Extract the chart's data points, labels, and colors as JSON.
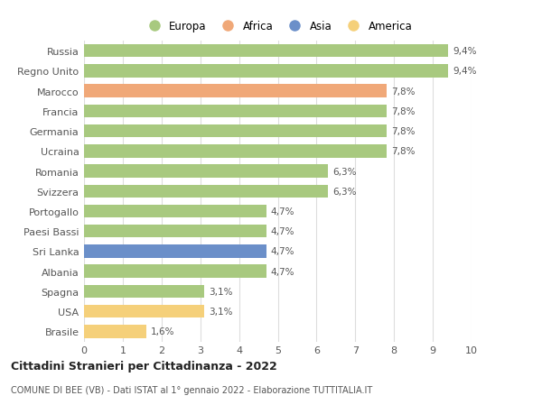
{
  "countries": [
    "Russia",
    "Regno Unito",
    "Marocco",
    "Francia",
    "Germania",
    "Ucraina",
    "Romania",
    "Svizzera",
    "Portogallo",
    "Paesi Bassi",
    "Sri Lanka",
    "Albania",
    "Spagna",
    "USA",
    "Brasile"
  ],
  "values": [
    9.4,
    9.4,
    7.8,
    7.8,
    7.8,
    7.8,
    6.3,
    6.3,
    4.7,
    4.7,
    4.7,
    4.7,
    3.1,
    3.1,
    1.6
  ],
  "labels": [
    "9,4%",
    "9,4%",
    "7,8%",
    "7,8%",
    "7,8%",
    "7,8%",
    "6,3%",
    "6,3%",
    "4,7%",
    "4,7%",
    "4,7%",
    "4,7%",
    "3,1%",
    "3,1%",
    "1,6%"
  ],
  "continents": [
    "Europa",
    "Europa",
    "Africa",
    "Europa",
    "Europa",
    "Europa",
    "Europa",
    "Europa",
    "Europa",
    "Europa",
    "Asia",
    "Europa",
    "Europa",
    "America",
    "America"
  ],
  "colors": {
    "Europa": "#a8c97f",
    "Africa": "#f0a878",
    "Asia": "#6b8fc9",
    "America": "#f5d07a"
  },
  "legend_order": [
    "Europa",
    "Africa",
    "Asia",
    "America"
  ],
  "legend_colors": [
    "#a8c97f",
    "#f0a878",
    "#6b8fc9",
    "#f5d07a"
  ],
  "xlim": [
    0,
    10
  ],
  "xticks": [
    0,
    1,
    2,
    3,
    4,
    5,
    6,
    7,
    8,
    9,
    10
  ],
  "title": "Cittadini Stranieri per Cittadinanza - 2022",
  "subtitle": "COMUNE DI BEE (VB) - Dati ISTAT al 1° gennaio 2022 - Elaborazione TUTTITALIA.IT",
  "background_color": "#ffffff",
  "grid_color": "#dddddd",
  "bar_height": 0.65
}
